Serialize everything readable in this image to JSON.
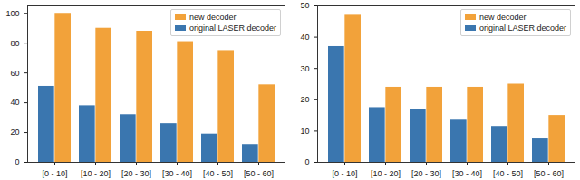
{
  "chart_data": [
    {
      "type": "bar",
      "categories": [
        "[0 - 10]",
        "[10 - 20]",
        "[20 - 30]",
        "[30 - 40]",
        "[40 - 50]",
        "[50 - 60]"
      ],
      "series": [
        {
          "name": "new decoder",
          "color": "#f2a23a",
          "values": [
            100,
            90,
            88,
            81,
            75,
            52
          ]
        },
        {
          "name": "original LASER decoder",
          "color": "#3a76af",
          "values": [
            51,
            38,
            32,
            26,
            19,
            12
          ]
        }
      ],
      "ylim": [
        0,
        105
      ],
      "yticks": [
        0,
        20,
        40,
        60,
        80,
        100
      ],
      "legend": "upper right"
    },
    {
      "type": "bar",
      "categories": [
        "[0 - 10]",
        "[10 - 20]",
        "[20 - 30]",
        "[30 - 40]",
        "[40 - 50]",
        "[50 - 60]"
      ],
      "series": [
        {
          "name": "new decoder",
          "color": "#f2a23a",
          "values": [
            47,
            24,
            24,
            24,
            25,
            15
          ]
        },
        {
          "name": "original LASER decoder",
          "color": "#3a76af",
          "values": [
            37,
            17.5,
            17,
            13.5,
            11.5,
            7.5
          ]
        }
      ],
      "ylim": [
        0,
        50
      ],
      "yticks": [
        0,
        10,
        20,
        30,
        40,
        50
      ],
      "legend": "upper right"
    }
  ]
}
